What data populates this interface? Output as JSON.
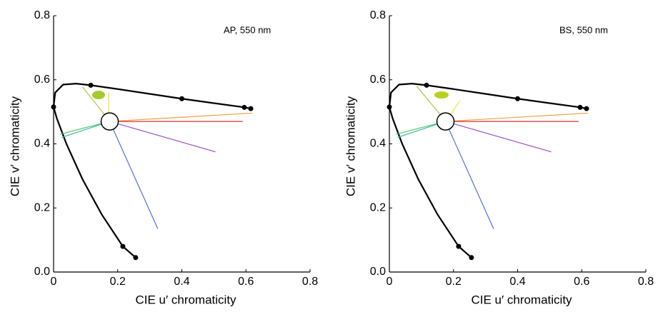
{
  "chart_data": [
    {
      "type": "line",
      "annotation": "AP, 550 nm",
      "xlabel": "CIE u′ chromaticity",
      "ylabel": "CIE v′ chromaticity",
      "xlim": [
        0,
        0.8
      ],
      "ylim": [
        0,
        0.8
      ],
      "xticks": [
        0,
        0.2,
        0.4,
        0.6,
        0.8
      ],
      "yticks": [
        {
          "value": 0,
          "label": "0.0"
        },
        0.2,
        0.4,
        0.6,
        0.8
      ],
      "white_point": {
        "x": 0.175,
        "y": 0.47
      },
      "series": [
        {
          "color": "#000000",
          "x": [
            0.256,
            0.216,
            0.15,
            0.09,
            0.04,
            0.01,
            0.0,
            0.005,
            0.03,
            0.07,
            0.116,
            0.2,
            0.3,
            0.4,
            0.5,
            0.595,
            0.615
          ],
          "y": [
            0.045,
            0.08,
            0.18,
            0.29,
            0.4,
            0.48,
            0.515,
            0.56,
            0.585,
            0.588,
            0.583,
            0.571,
            0.556,
            0.541,
            0.527,
            0.514,
            0.51
          ]
        },
        {
          "color": "#000000",
          "markers": true,
          "x": [
            0,
            0.116,
            0.4,
            0.595,
            0.615,
            0.216,
            0.256
          ],
          "y": [
            0.515,
            0.583,
            0.541,
            0.514,
            0.51,
            0.08,
            0.045
          ]
        },
        {
          "color": "#f0a040",
          "x": [
            0.175,
            0.62
          ],
          "y": [
            0.47,
            0.496
          ]
        },
        {
          "color": "#e03030",
          "x": [
            0.175,
            0.59
          ],
          "y": [
            0.47,
            0.47
          ]
        },
        {
          "color": "#a050c8",
          "x": [
            0.175,
            0.505
          ],
          "y": [
            0.47,
            0.375
          ]
        },
        {
          "color": "#5070e0",
          "x": [
            0.175,
            0.325
          ],
          "y": [
            0.47,
            0.135
          ]
        },
        {
          "color": "#50c860",
          "x": [
            0.175,
            0.02
          ],
          "y": [
            0.47,
            0.43
          ]
        },
        {
          "color": "#40b0b0",
          "x": [
            0.175,
            0.025
          ],
          "y": [
            0.47,
            0.42
          ]
        },
        {
          "color": "#b0c040",
          "x": [
            0.16,
            0.09
          ],
          "y": [
            0.49,
            0.578
          ]
        },
        {
          "color": "#e8e040",
          "x": [
            0.172,
            0.172
          ],
          "y": [
            0.49,
            0.56
          ]
        }
      ]
    },
    {
      "type": "line",
      "annotation": "BS, 550 nm",
      "xlabel": "CIE u′ chromaticity",
      "ylabel": "CIE v′ chromaticity",
      "xlim": [
        0,
        0.8
      ],
      "ylim": [
        0,
        0.8
      ],
      "xticks": [
        0,
        0.2,
        0.4,
        0.6,
        0.8
      ],
      "yticks": [
        {
          "value": 0,
          "label": "0.0"
        },
        0.2,
        0.4,
        0.6,
        0.8
      ],
      "white_point": {
        "x": 0.175,
        "y": 0.47
      },
      "series": [
        {
          "color": "#000000",
          "x": [
            0.256,
            0.216,
            0.15,
            0.09,
            0.04,
            0.01,
            0.0,
            0.005,
            0.03,
            0.07,
            0.116,
            0.2,
            0.3,
            0.4,
            0.5,
            0.595,
            0.615
          ],
          "y": [
            0.045,
            0.08,
            0.18,
            0.29,
            0.4,
            0.48,
            0.515,
            0.56,
            0.585,
            0.588,
            0.583,
            0.571,
            0.556,
            0.541,
            0.527,
            0.514,
            0.51
          ]
        },
        {
          "color": "#000000",
          "markers": true,
          "x": [
            0,
            0.116,
            0.4,
            0.595,
            0.615,
            0.216,
            0.256
          ],
          "y": [
            0.515,
            0.583,
            0.541,
            0.514,
            0.51,
            0.08,
            0.045
          ]
        },
        {
          "color": "#f0a040",
          "x": [
            0.175,
            0.62
          ],
          "y": [
            0.47,
            0.496
          ]
        },
        {
          "color": "#e03030",
          "x": [
            0.175,
            0.59
          ],
          "y": [
            0.47,
            0.47
          ]
        },
        {
          "color": "#a050c8",
          "x": [
            0.175,
            0.505
          ],
          "y": [
            0.47,
            0.375
          ]
        },
        {
          "color": "#5070e0",
          "x": [
            0.175,
            0.325
          ],
          "y": [
            0.47,
            0.135
          ]
        },
        {
          "color": "#50c860",
          "x": [
            0.175,
            0.02
          ],
          "y": [
            0.47,
            0.43
          ]
        },
        {
          "color": "#40b0b0",
          "x": [
            0.175,
            0.025
          ],
          "y": [
            0.47,
            0.42
          ]
        },
        {
          "color": "#b0c040",
          "x": [
            0.16,
            0.085
          ],
          "y": [
            0.49,
            0.58
          ]
        },
        {
          "color": "#f0e830",
          "x": [
            0.19,
            0.22
          ],
          "y": [
            0.49,
            0.535
          ]
        }
      ]
    }
  ]
}
